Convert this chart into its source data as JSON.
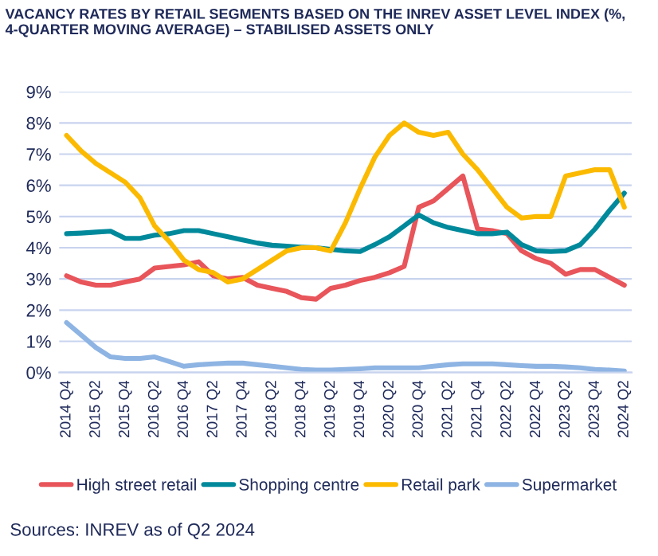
{
  "chart_data": {
    "type": "line",
    "title": "VACANCY RATES BY RETAIL SEGMENTS BASED ON THE INREV ASSET LEVEL INDEX (%,\n4-QUARTER MOVING AVERAGE) – STABILISED ASSETS ONLY",
    "categories": [
      "2014 Q4",
      null,
      "2015 Q2",
      null,
      "2015 Q4",
      null,
      "2016 Q2",
      null,
      "2016 Q4",
      null,
      "2017 Q2",
      null,
      "2017 Q4",
      null,
      "2018 Q2",
      null,
      "2018 Q4",
      null,
      "2019 Q2",
      null,
      "2019 Q4",
      null,
      "2020 Q2",
      null,
      "2020 Q4",
      null,
      "2021 Q2",
      null,
      "2021 Q4",
      null,
      "2022 Q2",
      null,
      "2022 Q4",
      null,
      "2023 Q2",
      null,
      "2023 Q4",
      null,
      "2024 Q2"
    ],
    "series": [
      {
        "name": "High street retail",
        "color": "#e8555a",
        "values": [
          3.1,
          2.9,
          2.8,
          2.8,
          2.9,
          3.0,
          3.35,
          3.4,
          3.45,
          3.55,
          3.1,
          3.0,
          3.05,
          2.8,
          2.7,
          2.6,
          2.4,
          2.35,
          2.7,
          2.8,
          2.95,
          3.05,
          3.2,
          3.4,
          5.3,
          5.5,
          5.9,
          6.3,
          4.6,
          4.55,
          4.45,
          3.9,
          3.65,
          3.5,
          3.15,
          3.3,
          3.3,
          3.05,
          2.8
        ]
      },
      {
        "name": "Shopping centre",
        "color": "#00899b",
        "values": [
          4.45,
          4.47,
          4.5,
          4.53,
          4.3,
          4.3,
          4.4,
          4.45,
          4.55,
          4.55,
          4.45,
          4.35,
          4.25,
          4.15,
          4.08,
          4.05,
          4.02,
          4.0,
          3.95,
          3.9,
          3.88,
          4.1,
          4.35,
          4.7,
          5.05,
          4.8,
          4.65,
          4.55,
          4.45,
          4.45,
          4.5,
          4.1,
          3.9,
          3.88,
          3.9,
          4.1,
          4.6,
          5.2,
          5.75
        ]
      },
      {
        "name": "Retail park",
        "color": "#fbba00",
        "values": [
          7.6,
          7.1,
          6.7,
          6.4,
          6.1,
          5.6,
          4.7,
          4.2,
          3.6,
          3.3,
          3.2,
          2.9,
          3.0,
          3.3,
          3.6,
          3.9,
          4.0,
          4.0,
          3.9,
          4.8,
          5.9,
          6.9,
          7.6,
          8.0,
          7.7,
          7.6,
          7.7,
          7.0,
          6.5,
          5.9,
          5.3,
          4.95,
          5.0,
          5.0,
          6.3,
          6.4,
          6.5,
          6.5,
          5.3
        ]
      },
      {
        "name": "Supermarket",
        "color": "#8eb4e3",
        "values": [
          1.6,
          1.2,
          0.8,
          0.5,
          0.45,
          0.45,
          0.5,
          0.35,
          0.2,
          0.25,
          0.28,
          0.3,
          0.3,
          0.25,
          0.2,
          0.15,
          0.1,
          0.08,
          0.08,
          0.1,
          0.12,
          0.15,
          0.15,
          0.15,
          0.15,
          0.2,
          0.25,
          0.28,
          0.28,
          0.28,
          0.25,
          0.22,
          0.2,
          0.2,
          0.18,
          0.15,
          0.1,
          0.08,
          0.05
        ]
      }
    ],
    "ylim": [
      0,
      9
    ],
    "yticks": [
      {
        "value": 0,
        "label": "0%"
      },
      {
        "value": 1,
        "label": "1%"
      },
      {
        "value": 2,
        "label": "2%"
      },
      {
        "value": 3,
        "label": "3%"
      },
      {
        "value": 4,
        "label": "4%"
      },
      {
        "value": 5,
        "label": "5%"
      },
      {
        "value": 6,
        "label": "6%"
      },
      {
        "value": 7,
        "label": "7%"
      },
      {
        "value": 8,
        "label": "8%"
      },
      {
        "value": 9,
        "label": "9%"
      }
    ],
    "grid": "y",
    "legend": "bottom",
    "annotations": [
      "Sources: INREV as of Q2 2024"
    ]
  }
}
